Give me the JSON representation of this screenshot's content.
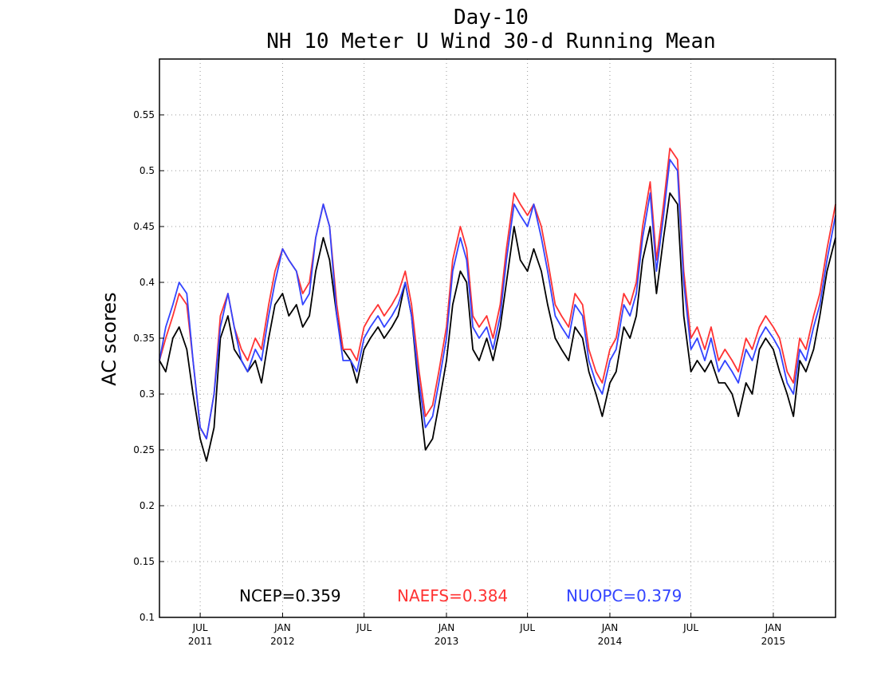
{
  "chart_data": {
    "type": "line",
    "title": "Day-10",
    "subtitle": "NH 10 Meter U Wind 30-d Running Mean",
    "ylabel": "AC scores",
    "xlabel": "",
    "ylim": [
      0.1,
      0.6
    ],
    "yticks": [
      0.1,
      0.15,
      0.2,
      0.25,
      0.3,
      0.35,
      0.4,
      0.45,
      0.5,
      0.55
    ],
    "ytick_labels": [
      "0.1",
      "0.15",
      "0.2",
      "0.25",
      "0.3",
      "0.35",
      "0.4",
      "0.45",
      "0.5",
      "0.55"
    ],
    "xlim": [
      "2011-04-01",
      "2015-05-20"
    ],
    "xticks": [
      {
        "date": "2011-07-01",
        "month": "JUL",
        "year": "2011"
      },
      {
        "date": "2012-01-01",
        "month": "JAN",
        "year": "2012"
      },
      {
        "date": "2012-07-01",
        "month": "JUL",
        "year": ""
      },
      {
        "date": "2013-01-01",
        "month": "JAN",
        "year": "2013"
      },
      {
        "date": "2013-07-01",
        "month": "JUL",
        "year": ""
      },
      {
        "date": "2014-01-01",
        "month": "JAN",
        "year": "2014"
      },
      {
        "date": "2014-07-01",
        "month": "JUL",
        "year": ""
      },
      {
        "date": "2015-01-01",
        "month": "JAN",
        "year": "2015"
      }
    ],
    "grid": true,
    "x": [
      "2011-04-01",
      "2011-04-15",
      "2011-05-01",
      "2011-05-15",
      "2011-06-01",
      "2011-06-15",
      "2011-07-01",
      "2011-07-15",
      "2011-08-01",
      "2011-08-15",
      "2011-09-01",
      "2011-09-15",
      "2011-10-01",
      "2011-10-15",
      "2011-11-01",
      "2011-11-15",
      "2011-12-01",
      "2011-12-15",
      "2012-01-01",
      "2012-01-15",
      "2012-02-01",
      "2012-02-15",
      "2012-03-01",
      "2012-03-15",
      "2012-04-01",
      "2012-04-15",
      "2012-05-01",
      "2012-05-15",
      "2012-06-01",
      "2012-06-15",
      "2012-07-01",
      "2012-07-15",
      "2012-08-01",
      "2012-08-15",
      "2012-09-01",
      "2012-09-15",
      "2012-10-01",
      "2012-10-15",
      "2012-11-01",
      "2012-11-15",
      "2012-12-01",
      "2012-12-15",
      "2013-01-01",
      "2013-01-15",
      "2013-02-01",
      "2013-02-15",
      "2013-03-01",
      "2013-03-15",
      "2013-04-01",
      "2013-04-15",
      "2013-05-01",
      "2013-05-15",
      "2013-06-01",
      "2013-06-15",
      "2013-07-01",
      "2013-07-15",
      "2013-08-01",
      "2013-08-15",
      "2013-09-01",
      "2013-09-15",
      "2013-10-01",
      "2013-10-15",
      "2013-11-01",
      "2013-11-15",
      "2013-12-01",
      "2013-12-15",
      "2014-01-01",
      "2014-01-15",
      "2014-02-01",
      "2014-02-15",
      "2014-03-01",
      "2014-03-15",
      "2014-04-01",
      "2014-04-15",
      "2014-05-01",
      "2014-05-15",
      "2014-06-01",
      "2014-06-15",
      "2014-07-01",
      "2014-07-15",
      "2014-08-01",
      "2014-08-15",
      "2014-09-01",
      "2014-09-15",
      "2014-10-01",
      "2014-10-15",
      "2014-11-01",
      "2014-11-15",
      "2014-12-01",
      "2014-12-15",
      "2015-01-01",
      "2015-01-15",
      "2015-02-01",
      "2015-02-15",
      "2015-03-01",
      "2015-03-15",
      "2015-04-01",
      "2015-04-15",
      "2015-05-01",
      "2015-05-20"
    ],
    "series": [
      {
        "name": "NCEP",
        "color": "#000000",
        "values": [
          0.33,
          0.32,
          0.35,
          0.36,
          0.34,
          0.3,
          0.26,
          0.24,
          0.27,
          0.35,
          0.37,
          0.34,
          0.33,
          0.32,
          0.33,
          0.31,
          0.35,
          0.38,
          0.39,
          0.37,
          0.38,
          0.36,
          0.37,
          0.41,
          0.44,
          0.42,
          0.37,
          0.34,
          0.33,
          0.31,
          0.34,
          0.35,
          0.36,
          0.35,
          0.36,
          0.37,
          0.4,
          0.37,
          0.3,
          0.25,
          0.26,
          0.29,
          0.33,
          0.38,
          0.41,
          0.4,
          0.34,
          0.33,
          0.35,
          0.33,
          0.36,
          0.4,
          0.45,
          0.42,
          0.41,
          0.43,
          0.41,
          0.38,
          0.35,
          0.34,
          0.33,
          0.36,
          0.35,
          0.32,
          0.3,
          0.28,
          0.31,
          0.32,
          0.36,
          0.35,
          0.37,
          0.42,
          0.45,
          0.39,
          0.44,
          0.48,
          0.47,
          0.37,
          0.32,
          0.33,
          0.32,
          0.33,
          0.31,
          0.31,
          0.3,
          0.28,
          0.31,
          0.3,
          0.34,
          0.35,
          0.34,
          0.32,
          0.3,
          0.28,
          0.33,
          0.32,
          0.34,
          0.37,
          0.41,
          0.44
        ]
      },
      {
        "name": "NAEFS",
        "color": "#ff3333",
        "values": [
          0.33,
          0.35,
          0.37,
          0.39,
          0.38,
          0.33,
          0.27,
          0.26,
          0.3,
          0.37,
          0.39,
          0.36,
          0.34,
          0.33,
          0.35,
          0.34,
          0.38,
          0.41,
          0.43,
          0.42,
          0.41,
          0.39,
          0.4,
          0.44,
          0.47,
          0.45,
          0.38,
          0.34,
          0.34,
          0.33,
          0.36,
          0.37,
          0.38,
          0.37,
          0.38,
          0.39,
          0.41,
          0.38,
          0.32,
          0.28,
          0.29,
          0.32,
          0.36,
          0.42,
          0.45,
          0.43,
          0.37,
          0.36,
          0.37,
          0.35,
          0.38,
          0.43,
          0.48,
          0.47,
          0.46,
          0.47,
          0.45,
          0.42,
          0.38,
          0.37,
          0.36,
          0.39,
          0.38,
          0.34,
          0.32,
          0.31,
          0.34,
          0.35,
          0.39,
          0.38,
          0.4,
          0.45,
          0.49,
          0.42,
          0.47,
          0.52,
          0.51,
          0.41,
          0.35,
          0.36,
          0.34,
          0.36,
          0.33,
          0.34,
          0.33,
          0.32,
          0.35,
          0.34,
          0.36,
          0.37,
          0.36,
          0.35,
          0.32,
          0.31,
          0.35,
          0.34,
          0.37,
          0.39,
          0.43,
          0.47
        ]
      },
      {
        "name": "NUOPC",
        "color": "#3344ff",
        "values": [
          0.33,
          0.36,
          0.38,
          0.4,
          0.39,
          0.33,
          0.27,
          0.26,
          0.3,
          0.36,
          0.39,
          0.36,
          0.33,
          0.32,
          0.34,
          0.33,
          0.37,
          0.4,
          0.43,
          0.42,
          0.41,
          0.38,
          0.39,
          0.44,
          0.47,
          0.45,
          0.37,
          0.33,
          0.33,
          0.32,
          0.35,
          0.36,
          0.37,
          0.36,
          0.37,
          0.38,
          0.4,
          0.37,
          0.31,
          0.27,
          0.28,
          0.31,
          0.35,
          0.41,
          0.44,
          0.42,
          0.36,
          0.35,
          0.36,
          0.34,
          0.37,
          0.42,
          0.47,
          0.46,
          0.45,
          0.47,
          0.44,
          0.41,
          0.37,
          0.36,
          0.35,
          0.38,
          0.37,
          0.33,
          0.31,
          0.3,
          0.33,
          0.34,
          0.38,
          0.37,
          0.39,
          0.44,
          0.48,
          0.41,
          0.46,
          0.51,
          0.5,
          0.4,
          0.34,
          0.35,
          0.33,
          0.35,
          0.32,
          0.33,
          0.32,
          0.31,
          0.34,
          0.33,
          0.35,
          0.36,
          0.35,
          0.34,
          0.31,
          0.3,
          0.34,
          0.33,
          0.36,
          0.38,
          0.42,
          0.46
        ]
      }
    ],
    "legend": [
      {
        "label": "NCEP=0.359",
        "color": "#000000"
      },
      {
        "label": "NAEFS=0.384",
        "color": "#ff3333"
      },
      {
        "label": "NUOPC=0.379",
        "color": "#3344ff"
      }
    ],
    "legend_placement": "bottom-inside"
  }
}
